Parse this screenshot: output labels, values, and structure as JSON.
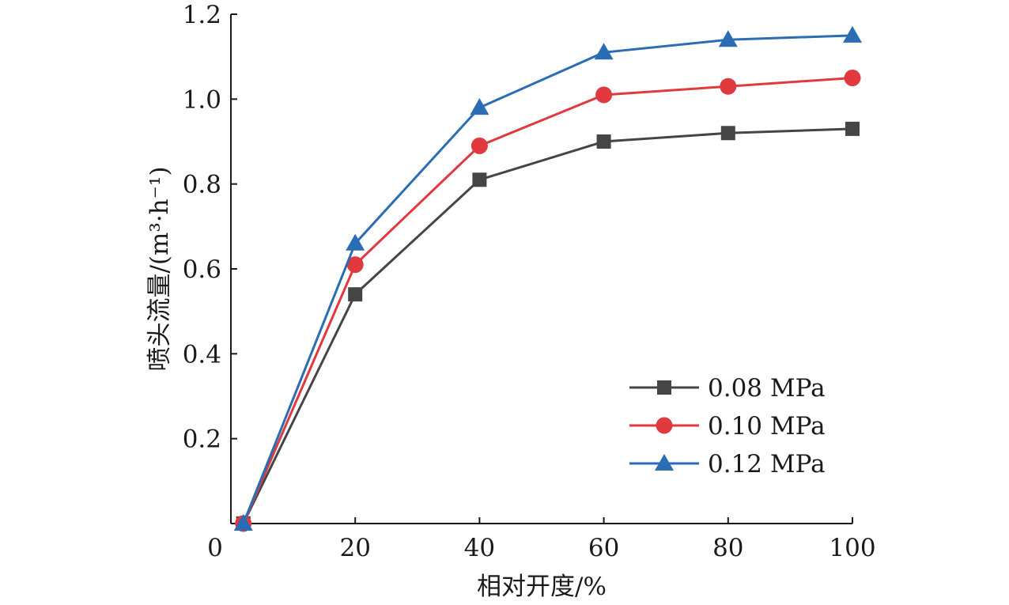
{
  "chart_data": {
    "type": "line",
    "title": "",
    "xlabel": "相对开度/%",
    "ylabel": "喷头流量/(m³·h⁻¹)",
    "xlim": [
      0,
      100
    ],
    "ylim": [
      0,
      1.2
    ],
    "xticks": [
      0,
      20,
      40,
      60,
      80,
      100
    ],
    "yticks": [
      0.2,
      0.4,
      0.6,
      0.8,
      1.0,
      1.2
    ],
    "xtick_labels": [
      "0",
      "20",
      "40",
      "60",
      "80",
      "100"
    ],
    "ytick_labels": [
      "0.2",
      "0.4",
      "0.6",
      "0.8",
      "1.0",
      "1.2"
    ],
    "grid": false,
    "legend_position": "lower-right",
    "x": [
      2,
      20,
      40,
      60,
      80,
      100
    ],
    "series": [
      {
        "name": "0.08 MPa",
        "color": "#454545",
        "marker": "square",
        "values": [
          0,
          0.54,
          0.81,
          0.9,
          0.92,
          0.93
        ]
      },
      {
        "name": "0.10 MPa",
        "color": "#e0393e",
        "marker": "circle",
        "values": [
          0,
          0.61,
          0.89,
          1.01,
          1.03,
          1.05
        ]
      },
      {
        "name": "0.12 MPa",
        "color": "#2a6db5",
        "marker": "triangle",
        "values": [
          0,
          0.66,
          0.98,
          1.11,
          1.14,
          1.15
        ]
      }
    ]
  }
}
